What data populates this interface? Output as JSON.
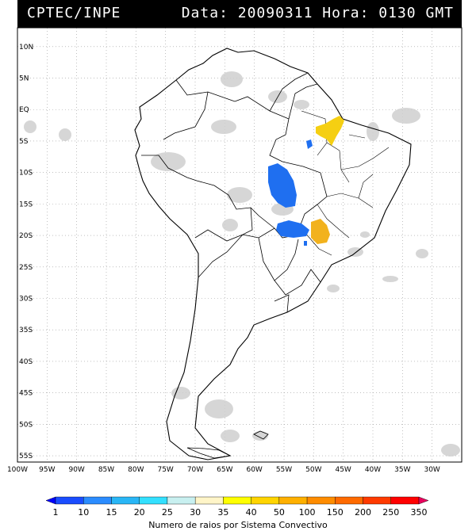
{
  "header": {
    "source": "CPTEC/INPE",
    "datetime": "Data: 20090311 Hora: 0130 GMT"
  },
  "map": {
    "lon_range": [
      -100,
      -25
    ],
    "lat_range": [
      -56,
      13
    ],
    "lat_labels": [
      "10N",
      "5N",
      "EQ",
      "5S",
      "10S",
      "15S",
      "20S",
      "25S",
      "30S",
      "35S",
      "40S",
      "45S",
      "50S",
      "55S"
    ],
    "lat_values": [
      10,
      5,
      0,
      -5,
      -10,
      -15,
      -20,
      -25,
      -30,
      -35,
      -40,
      -45,
      -50,
      -55
    ],
    "lon_labels": [
      "100W",
      "95W",
      "90W",
      "85W",
      "80W",
      "75W",
      "70W",
      "65W",
      "60W",
      "55W",
      "50W",
      "45W",
      "40W",
      "35W",
      "30W"
    ],
    "lon_values": [
      -100,
      -95,
      -90,
      -85,
      -80,
      -75,
      -70,
      -65,
      -60,
      -55,
      -50,
      -45,
      -40,
      -35,
      -30
    ],
    "gridlines": true,
    "colors": {
      "land_outline": "#000000",
      "cloud_gray": "#c8c8c8",
      "storm_blue": "#1f6ff0",
      "storm_orange": "#f2b21d",
      "storm_yellow": "#f5cf12"
    }
  },
  "colorbar": {
    "ticks": [
      "1",
      "10",
      "15",
      "20",
      "25",
      "30",
      "35",
      "40",
      "50",
      "100",
      "150",
      "200",
      "250",
      "350"
    ],
    "colors": [
      "#0000ff",
      "#1a4cff",
      "#2b8cff",
      "#29b6f6",
      "#33e0ff",
      "#c8f0f0",
      "#fff5c8",
      "#ffff00",
      "#ffd400",
      "#ffb000",
      "#ff8c00",
      "#ff6a00",
      "#ff3a00",
      "#ff0000",
      "#e8005c"
    ],
    "label": "Numero de raios por Sistema Convectivo"
  }
}
